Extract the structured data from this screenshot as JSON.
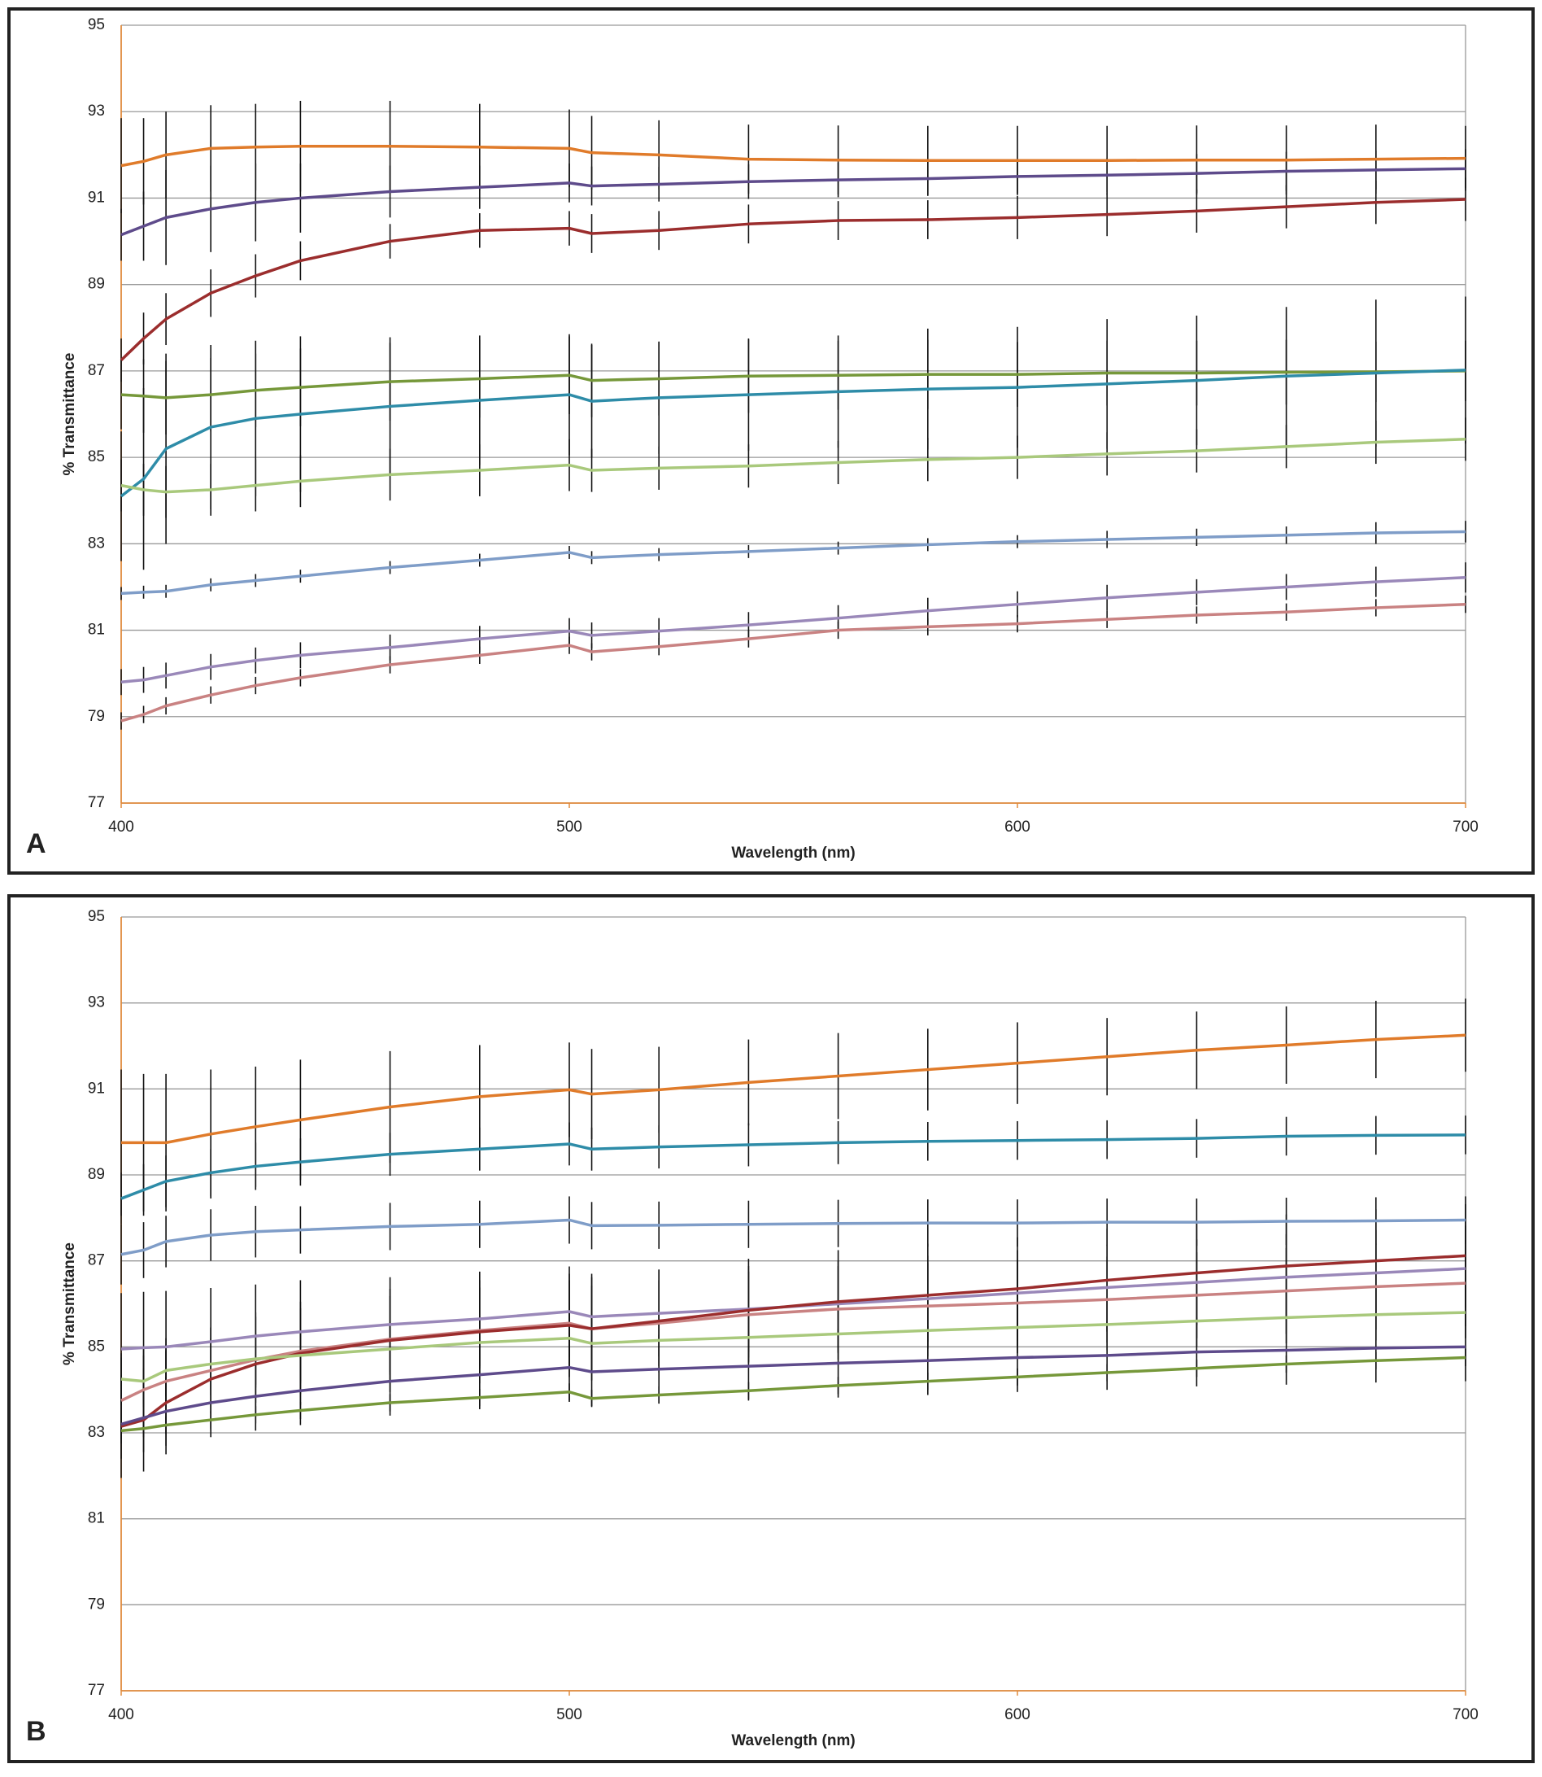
{
  "chart_data": [
    {
      "type": "line",
      "panel_label": "A",
      "x_label": "Wavelength (nm)",
      "y_label": "% Transmittance",
      "xlim": [
        400,
        700
      ],
      "xticks": [
        400,
        500,
        600,
        700
      ],
      "ylim": [
        77,
        95
      ],
      "yticks": [
        77,
        79,
        81,
        83,
        85,
        87,
        89,
        91,
        93,
        95
      ],
      "grid": true,
      "x": [
        400,
        405,
        410,
        420,
        430,
        440,
        460,
        480,
        500,
        505,
        520,
        540,
        560,
        580,
        600,
        620,
        640,
        660,
        680,
        700
      ],
      "series": [
        {
          "color": "#e07b2a",
          "values": [
            91.75,
            91.85,
            92.0,
            92.15,
            92.18,
            92.2,
            92.2,
            92.18,
            92.15,
            92.05,
            92.0,
            91.9,
            91.88,
            91.87,
            91.87,
            91.87,
            91.88,
            91.88,
            91.9,
            91.92
          ],
          "errors": [
            1.1,
            1.0,
            1.0,
            1.0,
            1.0,
            1.05,
            1.05,
            1.0,
            0.9,
            0.85,
            0.8,
            0.8,
            0.8,
            0.8,
            0.8,
            0.8,
            0.8,
            0.8,
            0.8,
            0.75
          ]
        },
        {
          "color": "#5e4b8b",
          "values": [
            90.15,
            90.35,
            90.55,
            90.75,
            90.9,
            91.0,
            91.15,
            91.25,
            91.35,
            91.28,
            91.32,
            91.38,
            91.42,
            91.45,
            91.5,
            91.53,
            91.57,
            91.62,
            91.65,
            91.68
          ],
          "errors": [
            0.6,
            0.8,
            1.1,
            1.0,
            0.9,
            0.8,
            0.6,
            0.5,
            0.45,
            0.45,
            0.4,
            0.4,
            0.4,
            0.4,
            0.4,
            0.4,
            0.45,
            0.45,
            0.45,
            0.45
          ]
        },
        {
          "color": "#9b2d2d",
          "values": [
            87.25,
            87.75,
            88.2,
            88.8,
            89.2,
            89.55,
            90.0,
            90.25,
            90.3,
            90.18,
            90.25,
            90.4,
            90.48,
            90.5,
            90.55,
            90.62,
            90.7,
            90.8,
            90.9,
            90.97
          ],
          "errors": [
            0.5,
            0.6,
            0.6,
            0.55,
            0.5,
            0.45,
            0.4,
            0.4,
            0.4,
            0.45,
            0.45,
            0.45,
            0.45,
            0.45,
            0.5,
            0.5,
            0.5,
            0.5,
            0.5,
            0.5
          ]
        },
        {
          "color": "#76983a",
          "values": [
            86.45,
            86.42,
            86.38,
            86.45,
            86.55,
            86.62,
            86.75,
            86.82,
            86.9,
            86.78,
            86.82,
            86.88,
            86.9,
            86.92,
            86.92,
            86.95,
            86.95,
            86.97,
            86.98,
            87.0
          ],
          "errors": [
            0.8,
            0.85,
            0.85,
            0.85,
            0.85,
            0.9,
            0.9,
            0.9,
            0.9,
            0.85,
            0.85,
            0.85,
            0.8,
            0.8,
            0.75,
            0.75,
            0.75,
            0.75,
            0.7,
            0.7
          ]
        },
        {
          "color": "#2e8ca8",
          "values": [
            84.1,
            84.5,
            85.2,
            85.7,
            85.9,
            86.0,
            86.18,
            86.32,
            86.45,
            86.3,
            86.38,
            86.45,
            86.52,
            86.58,
            86.62,
            86.7,
            86.78,
            86.88,
            86.95,
            87.02
          ],
          "errors": [
            1.5,
            2.1,
            2.2,
            1.9,
            1.8,
            1.8,
            1.6,
            1.5,
            1.4,
            1.3,
            1.3,
            1.3,
            1.3,
            1.4,
            1.4,
            1.5,
            1.5,
            1.6,
            1.7,
            1.7
          ]
        },
        {
          "color": "#a9c97c",
          "values": [
            84.35,
            84.25,
            84.2,
            84.25,
            84.35,
            84.45,
            84.6,
            84.7,
            84.82,
            84.7,
            84.75,
            84.8,
            84.88,
            84.95,
            85.0,
            85.08,
            85.15,
            85.25,
            85.35,
            85.42
          ],
          "errors": [
            0.6,
            0.6,
            0.6,
            0.6,
            0.6,
            0.6,
            0.6,
            0.6,
            0.6,
            0.5,
            0.5,
            0.5,
            0.5,
            0.5,
            0.5,
            0.5,
            0.5,
            0.5,
            0.5,
            0.5
          ]
        },
        {
          "color": "#7f9dc8",
          "values": [
            81.85,
            81.88,
            81.9,
            82.05,
            82.15,
            82.25,
            82.45,
            82.62,
            82.8,
            82.68,
            82.75,
            82.82,
            82.9,
            82.98,
            83.05,
            83.1,
            83.15,
            83.2,
            83.25,
            83.28
          ],
          "errors": [
            0.15,
            0.15,
            0.15,
            0.15,
            0.15,
            0.15,
            0.15,
            0.15,
            0.15,
            0.15,
            0.15,
            0.15,
            0.15,
            0.15,
            0.15,
            0.2,
            0.2,
            0.2,
            0.25,
            0.25
          ]
        },
        {
          "color": "#9a88b9",
          "values": [
            79.8,
            79.85,
            79.95,
            80.15,
            80.3,
            80.42,
            80.6,
            80.8,
            80.98,
            80.88,
            80.98,
            81.12,
            81.28,
            81.45,
            81.6,
            81.75,
            81.88,
            82.0,
            82.12,
            82.22
          ],
          "errors": [
            0.3,
            0.3,
            0.3,
            0.3,
            0.3,
            0.3,
            0.3,
            0.3,
            0.3,
            0.3,
            0.3,
            0.3,
            0.3,
            0.3,
            0.3,
            0.3,
            0.3,
            0.3,
            0.35,
            0.35
          ]
        },
        {
          "color": "#c98282",
          "values": [
            78.9,
            79.05,
            79.25,
            79.5,
            79.72,
            79.9,
            80.2,
            80.42,
            80.65,
            80.5,
            80.62,
            80.8,
            81.0,
            81.08,
            81.15,
            81.25,
            81.35,
            81.42,
            81.52,
            81.6
          ],
          "errors": [
            0.2,
            0.2,
            0.2,
            0.2,
            0.2,
            0.2,
            0.2,
            0.2,
            0.2,
            0.2,
            0.2,
            0.2,
            0.2,
            0.2,
            0.2,
            0.2,
            0.2,
            0.2,
            0.2,
            0.2
          ]
        }
      ]
    },
    {
      "type": "line",
      "panel_label": "B",
      "x_label": "Wavelength (nm)",
      "y_label": "% Transmittance",
      "xlim": [
        400,
        700
      ],
      "xticks": [
        400,
        500,
        600,
        700
      ],
      "ylim": [
        77,
        95
      ],
      "yticks": [
        77,
        79,
        81,
        83,
        85,
        87,
        89,
        91,
        93,
        95
      ],
      "grid": true,
      "x": [
        400,
        405,
        410,
        420,
        430,
        440,
        460,
        480,
        500,
        505,
        520,
        540,
        560,
        580,
        600,
        620,
        640,
        660,
        680,
        700
      ],
      "series": [
        {
          "color": "#e07b2a",
          "values": [
            89.75,
            89.75,
            89.75,
            89.95,
            90.12,
            90.28,
            90.58,
            90.82,
            90.98,
            90.88,
            90.98,
            91.15,
            91.3,
            91.45,
            91.6,
            91.75,
            91.9,
            92.02,
            92.15,
            92.25
          ],
          "errors": [
            1.7,
            1.6,
            1.6,
            1.5,
            1.4,
            1.4,
            1.3,
            1.2,
            1.1,
            1.05,
            1.0,
            1.0,
            1.0,
            0.95,
            0.95,
            0.9,
            0.9,
            0.9,
            0.9,
            0.85
          ]
        },
        {
          "color": "#2e8ca8",
          "values": [
            88.45,
            88.65,
            88.85,
            89.05,
            89.2,
            89.3,
            89.48,
            89.6,
            89.72,
            89.6,
            89.65,
            89.7,
            89.75,
            89.78,
            89.8,
            89.82,
            89.85,
            89.9,
            89.92,
            89.93
          ],
          "errors": [
            0.6,
            0.6,
            0.6,
            0.55,
            0.55,
            0.55,
            0.5,
            0.5,
            0.5,
            0.5,
            0.5,
            0.5,
            0.5,
            0.45,
            0.45,
            0.45,
            0.45,
            0.45,
            0.45,
            0.45
          ]
        },
        {
          "color": "#7f9dc8",
          "values": [
            87.15,
            87.25,
            87.45,
            87.6,
            87.68,
            87.72,
            87.8,
            87.85,
            87.95,
            87.82,
            87.83,
            87.85,
            87.87,
            87.88,
            87.88,
            87.9,
            87.9,
            87.92,
            87.93,
            87.95
          ],
          "errors": [
            0.7,
            0.65,
            0.6,
            0.6,
            0.6,
            0.55,
            0.55,
            0.55,
            0.55,
            0.55,
            0.55,
            0.55,
            0.55,
            0.55,
            0.55,
            0.55,
            0.55,
            0.55,
            0.55,
            0.55
          ]
        },
        {
          "color": "#9a88b9",
          "values": [
            84.95,
            84.98,
            85.0,
            85.12,
            85.25,
            85.35,
            85.52,
            85.65,
            85.82,
            85.7,
            85.78,
            85.88,
            86.0,
            86.12,
            86.25,
            86.38,
            86.5,
            86.62,
            86.72,
            86.82
          ],
          "errors": [
            1.3,
            1.3,
            1.3,
            1.25,
            1.2,
            1.2,
            1.1,
            1.1,
            1.05,
            1.0,
            1.0,
            1.0,
            1.0,
            1.0,
            1.0,
            1.0,
            1.0,
            1.0,
            1.0,
            1.0
          ]
        },
        {
          "color": "#c98282",
          "values": [
            83.75,
            84.0,
            84.2,
            84.45,
            84.7,
            84.9,
            85.18,
            85.38,
            85.55,
            85.42,
            85.55,
            85.75,
            85.88,
            85.95,
            86.02,
            86.1,
            86.2,
            86.3,
            86.4,
            86.48
          ],
          "errors": [
            1.0,
            1.0,
            1.0,
            1.0,
            1.0,
            1.0,
            1.0,
            1.0,
            1.0,
            1.0,
            1.0,
            1.0,
            1.0,
            1.0,
            1.0,
            1.0,
            1.0,
            1.0,
            1.0,
            1.0
          ]
        },
        {
          "color": "#9b2d2d",
          "values": [
            83.15,
            83.3,
            83.7,
            84.25,
            84.6,
            84.85,
            85.15,
            85.35,
            85.5,
            85.42,
            85.6,
            85.85,
            86.05,
            86.2,
            86.35,
            86.55,
            86.72,
            86.88,
            87.0,
            87.12
          ],
          "errors": [
            1.2,
            1.2,
            1.2,
            1.2,
            1.2,
            1.2,
            1.2,
            1.2,
            1.2,
            1.2,
            1.2,
            1.2,
            1.2,
            1.2,
            1.2,
            1.2,
            1.2,
            1.2,
            1.2,
            1.2
          ]
        },
        {
          "color": "#a9c97c",
          "values": [
            84.25,
            84.2,
            84.45,
            84.6,
            84.72,
            84.8,
            84.95,
            85.1,
            85.2,
            85.08,
            85.15,
            85.22,
            85.3,
            85.38,
            85.45,
            85.52,
            85.6,
            85.68,
            85.75,
            85.8
          ],
          "errors": [
            0.6,
            0.6,
            0.6,
            0.6,
            0.6,
            0.6,
            0.6,
            0.6,
            0.6,
            0.6,
            0.6,
            0.6,
            0.6,
            0.6,
            0.6,
            0.6,
            0.6,
            0.6,
            0.6,
            0.6
          ]
        },
        {
          "color": "#5e4b8b",
          "values": [
            83.2,
            83.35,
            83.5,
            83.7,
            83.85,
            83.98,
            84.2,
            84.35,
            84.52,
            84.42,
            84.48,
            84.55,
            84.62,
            84.68,
            84.75,
            84.8,
            84.88,
            84.92,
            84.97,
            85.0
          ],
          "errors": [
            0.8,
            0.8,
            0.8,
            0.8,
            0.8,
            0.8,
            0.8,
            0.8,
            0.8,
            0.8,
            0.8,
            0.8,
            0.8,
            0.8,
            0.8,
            0.8,
            0.8,
            0.8,
            0.8,
            0.8
          ]
        },
        {
          "color": "#76983a",
          "values": [
            83.05,
            83.1,
            83.18,
            83.3,
            83.42,
            83.52,
            83.7,
            83.82,
            83.95,
            83.8,
            83.88,
            83.98,
            84.1,
            84.2,
            84.3,
            84.4,
            84.5,
            84.6,
            84.68,
            84.75
          ],
          "errors": [
            0.2,
            0.2,
            0.2,
            0.2,
            0.2,
            0.2,
            0.2,
            0.2,
            0.2,
            0.2,
            0.2,
            0.2,
            0.2,
            0.2,
            0.2,
            0.2,
            0.2,
            0.2,
            0.2,
            0.2
          ]
        }
      ]
    }
  ]
}
